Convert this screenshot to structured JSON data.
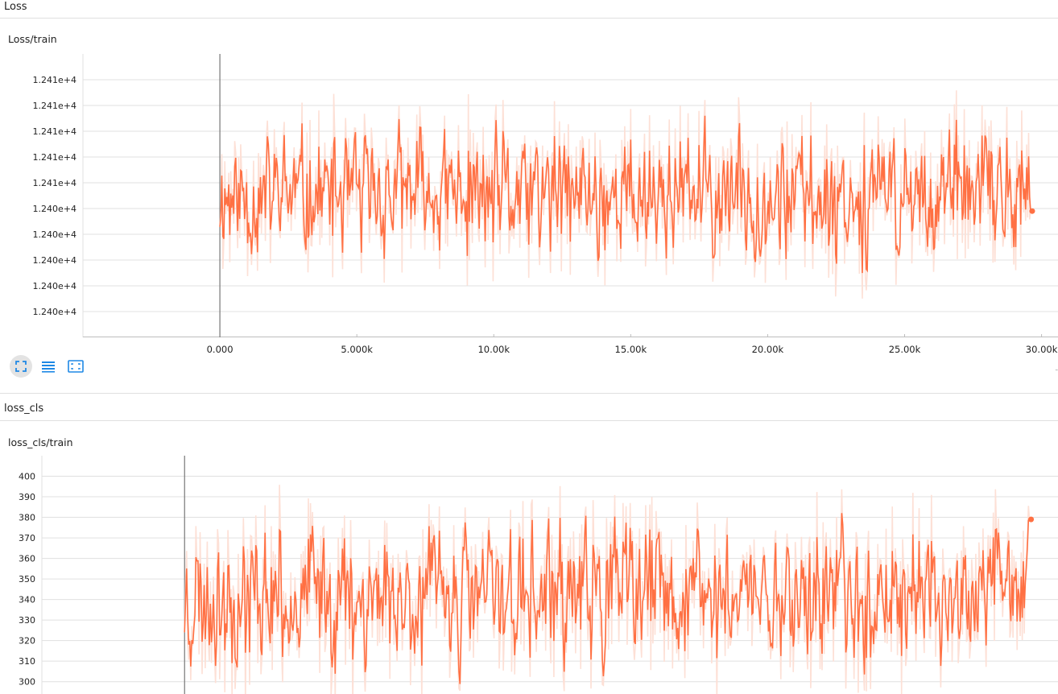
{
  "sections": {
    "loss": {
      "header": "Loss",
      "card_title": "Loss/train"
    },
    "loss_cls": {
      "header": "loss_cls",
      "card_title": "loss_cls/train"
    }
  },
  "toolbar": {
    "icons": [
      "fit-domain-icon",
      "toggle-log-icon",
      "fullscreen-icon"
    ]
  },
  "colors": {
    "series": "#ff7043",
    "series_raw": "#fde0d6",
    "grid": "#e0e0e0",
    "axis": "#777777"
  },
  "chart_data": [
    {
      "type": "line",
      "title": "Loss/train",
      "x_ticks": [
        "0.000",
        "5.000k",
        "10.00k",
        "15.00k",
        "20.00k",
        "25.00k",
        "30.00k"
      ],
      "x_tick_values": [
        0,
        5000,
        10000,
        15000,
        20000,
        25000,
        30000
      ],
      "y_ticks": [
        "1.241e+4",
        "1.241e+4",
        "1.241e+4",
        "1.241e+4",
        "1.241e+4",
        "1.240e+4",
        "1.240e+4",
        "1.240e+4",
        "1.240e+4",
        "1.240e+4"
      ],
      "y_tick_values": [
        12405.8,
        12405.6,
        12405.4,
        12405.2,
        12405.0,
        12404.8,
        12404.6,
        12404.4,
        12404.2,
        12404.0
      ],
      "xlim": [
        -5000,
        30600
      ],
      "ylim": [
        12403.8,
        12406.0
      ],
      "x_start": 0,
      "x_end": 29600,
      "y_last": 12404.78,
      "baseline": 12404.9,
      "amplitude": 0.55,
      "seed": 11,
      "n_points": 820,
      "grid": true
    },
    {
      "type": "line",
      "title": "loss_cls/train",
      "y_ticks": [
        "400",
        "390",
        "380",
        "370",
        "360",
        "350",
        "340",
        "330",
        "320",
        "310",
        "300"
      ],
      "y_tick_values": [
        400,
        390,
        380,
        370,
        360,
        350,
        340,
        330,
        320,
        310,
        300
      ],
      "xlim": [
        -5000,
        30600
      ],
      "ylim": [
        294,
        410
      ],
      "x_start": 0,
      "x_end": 29600,
      "y_last": 379,
      "baseline": 342,
      "amplitude": 38,
      "seed": 23,
      "n_points": 820,
      "grid": true
    }
  ]
}
